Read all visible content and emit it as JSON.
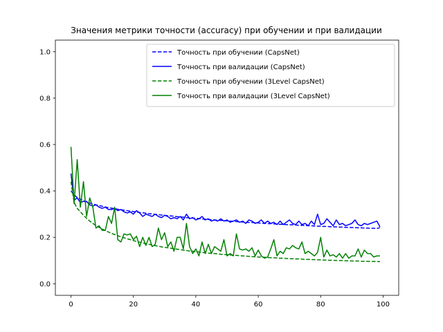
{
  "chart_data": {
    "type": "line",
    "title": "Значения метрики точности (accuracy) при обучении и при валидации",
    "xlabel": "",
    "ylabel": "",
    "xlim": [
      -5,
      105
    ],
    "ylim": [
      -0.05,
      1.05
    ],
    "xticks": [
      0,
      20,
      40,
      60,
      80,
      100
    ],
    "yticks": [
      0.0,
      0.2,
      0.4,
      0.6,
      0.8,
      1.0
    ],
    "xtick_labels": [
      "0",
      "20",
      "40",
      "60",
      "80",
      "100"
    ],
    "ytick_labels": [
      "0.0",
      "0.2",
      "0.4",
      "0.6",
      "0.8",
      "1.0"
    ],
    "grid": false,
    "legend_position": "top-right",
    "x": [
      0,
      1,
      2,
      3,
      4,
      5,
      6,
      7,
      8,
      9,
      10,
      11,
      12,
      13,
      14,
      15,
      16,
      17,
      18,
      19,
      20,
      21,
      22,
      23,
      24,
      25,
      26,
      27,
      28,
      29,
      30,
      31,
      32,
      33,
      34,
      35,
      36,
      37,
      38,
      39,
      40,
      41,
      42,
      43,
      44,
      45,
      46,
      47,
      48,
      49,
      50,
      51,
      52,
      53,
      54,
      55,
      56,
      57,
      58,
      59,
      60,
      61,
      62,
      63,
      64,
      65,
      66,
      67,
      68,
      69,
      70,
      71,
      72,
      73,
      74,
      75,
      76,
      77,
      78,
      79,
      80,
      81,
      82,
      83,
      84,
      85,
      86,
      87,
      88,
      89,
      90,
      91,
      92,
      93,
      94,
      95,
      96,
      97,
      98,
      99
    ],
    "series": [
      {
        "name": "Точность при обучении (CapsNet)",
        "color": "#0000ff",
        "dash": "dashed",
        "values": [
          0.4,
          0.383,
          0.372,
          0.364,
          0.358,
          0.353,
          0.348,
          0.344,
          0.34,
          0.337,
          0.334,
          0.331,
          0.328,
          0.326,
          0.323,
          0.321,
          0.319,
          0.317,
          0.315,
          0.313,
          0.311,
          0.309,
          0.307,
          0.306,
          0.304,
          0.302,
          0.301,
          0.299,
          0.298,
          0.296,
          0.295,
          0.293,
          0.292,
          0.291,
          0.289,
          0.288,
          0.287,
          0.285,
          0.284,
          0.283,
          0.282,
          0.281,
          0.279,
          0.278,
          0.277,
          0.276,
          0.275,
          0.274,
          0.273,
          0.272,
          0.271,
          0.27,
          0.269,
          0.268,
          0.267,
          0.266,
          0.265,
          0.264,
          0.264,
          0.263,
          0.262,
          0.261,
          0.26,
          0.259,
          0.259,
          0.258,
          0.257,
          0.256,
          0.256,
          0.255,
          0.254,
          0.254,
          0.253,
          0.252,
          0.252,
          0.251,
          0.25,
          0.25,
          0.249,
          0.248,
          0.248,
          0.247,
          0.247,
          0.246,
          0.245,
          0.245,
          0.244,
          0.244,
          0.243,
          0.243,
          0.242,
          0.242,
          0.241,
          0.241,
          0.24,
          0.24,
          0.239,
          0.239,
          0.238,
          0.242
        ]
      },
      {
        "name": "Точность при валидации (CapsNet)",
        "color": "#0000ff",
        "dash": "solid",
        "values": [
          0.475,
          0.36,
          0.37,
          0.35,
          0.355,
          0.355,
          0.34,
          0.335,
          0.34,
          0.33,
          0.325,
          0.33,
          0.32,
          0.32,
          0.325,
          0.315,
          0.32,
          0.31,
          0.305,
          0.31,
          0.3,
          0.315,
          0.305,
          0.29,
          0.3,
          0.295,
          0.29,
          0.3,
          0.29,
          0.285,
          0.295,
          0.29,
          0.28,
          0.285,
          0.28,
          0.29,
          0.275,
          0.3,
          0.28,
          0.285,
          0.275,
          0.28,
          0.29,
          0.275,
          0.28,
          0.27,
          0.275,
          0.27,
          0.28,
          0.27,
          0.275,
          0.265,
          0.27,
          0.275,
          0.265,
          0.27,
          0.26,
          0.275,
          0.27,
          0.26,
          0.265,
          0.275,
          0.26,
          0.27,
          0.26,
          0.265,
          0.255,
          0.27,
          0.255,
          0.265,
          0.275,
          0.26,
          0.255,
          0.27,
          0.255,
          0.26,
          0.25,
          0.27,
          0.255,
          0.3,
          0.255,
          0.26,
          0.28,
          0.265,
          0.25,
          0.275,
          0.255,
          0.26,
          0.25,
          0.255,
          0.26,
          0.275,
          0.255,
          0.25,
          0.26,
          0.255,
          0.26,
          0.265,
          0.27,
          0.245
        ]
      },
      {
        "name": "Точность при обучении (3Level CapsNet)",
        "color": "#008000",
        "dash": "dashed",
        "values": [
          0.44,
          0.35,
          0.325,
          0.31,
          0.295,
          0.282,
          0.27,
          0.26,
          0.251,
          0.243,
          0.236,
          0.229,
          0.223,
          0.217,
          0.212,
          0.207,
          0.202,
          0.198,
          0.194,
          0.19,
          0.186,
          0.182,
          0.179,
          0.176,
          0.173,
          0.17,
          0.167,
          0.164,
          0.162,
          0.159,
          0.157,
          0.155,
          0.153,
          0.151,
          0.149,
          0.147,
          0.145,
          0.143,
          0.141,
          0.14,
          0.138,
          0.137,
          0.135,
          0.134,
          0.132,
          0.131,
          0.13,
          0.129,
          0.127,
          0.126,
          0.125,
          0.124,
          0.123,
          0.122,
          0.121,
          0.12,
          0.119,
          0.118,
          0.117,
          0.116,
          0.115,
          0.115,
          0.114,
          0.113,
          0.112,
          0.112,
          0.111,
          0.11,
          0.11,
          0.109,
          0.108,
          0.108,
          0.107,
          0.107,
          0.106,
          0.105,
          0.105,
          0.104,
          0.104,
          0.103,
          0.103,
          0.102,
          0.102,
          0.101,
          0.101,
          0.1,
          0.1,
          0.1,
          0.099,
          0.099,
          0.098,
          0.098,
          0.098,
          0.097,
          0.097,
          0.097,
          0.096,
          0.096,
          0.096,
          0.095
        ]
      },
      {
        "name": "Точность при валидации (3Level CapsNet)",
        "color": "#008000",
        "dash": "solid",
        "values": [
          0.59,
          0.345,
          0.535,
          0.33,
          0.44,
          0.29,
          0.37,
          0.33,
          0.24,
          0.25,
          0.23,
          0.23,
          0.29,
          0.26,
          0.33,
          0.19,
          0.18,
          0.215,
          0.21,
          0.215,
          0.19,
          0.205,
          0.16,
          0.2,
          0.165,
          0.2,
          0.16,
          0.17,
          0.24,
          0.19,
          0.22,
          0.16,
          0.18,
          0.14,
          0.2,
          0.2,
          0.15,
          0.26,
          0.16,
          0.13,
          0.15,
          0.12,
          0.18,
          0.13,
          0.17,
          0.13,
          0.16,
          0.15,
          0.14,
          0.19,
          0.12,
          0.13,
          0.12,
          0.215,
          0.15,
          0.145,
          0.15,
          0.14,
          0.155,
          0.12,
          0.145,
          0.12,
          0.11,
          0.115,
          0.15,
          0.19,
          0.12,
          0.14,
          0.13,
          0.155,
          0.15,
          0.165,
          0.155,
          0.15,
          0.18,
          0.13,
          0.14,
          0.13,
          0.12,
          0.135,
          0.2,
          0.115,
          0.145,
          0.12,
          0.125,
          0.115,
          0.13,
          0.11,
          0.13,
          0.11,
          0.12,
          0.12,
          0.15,
          0.115,
          0.145,
          0.13,
          0.13,
          0.115,
          0.12,
          0.12
        ]
      }
    ]
  }
}
